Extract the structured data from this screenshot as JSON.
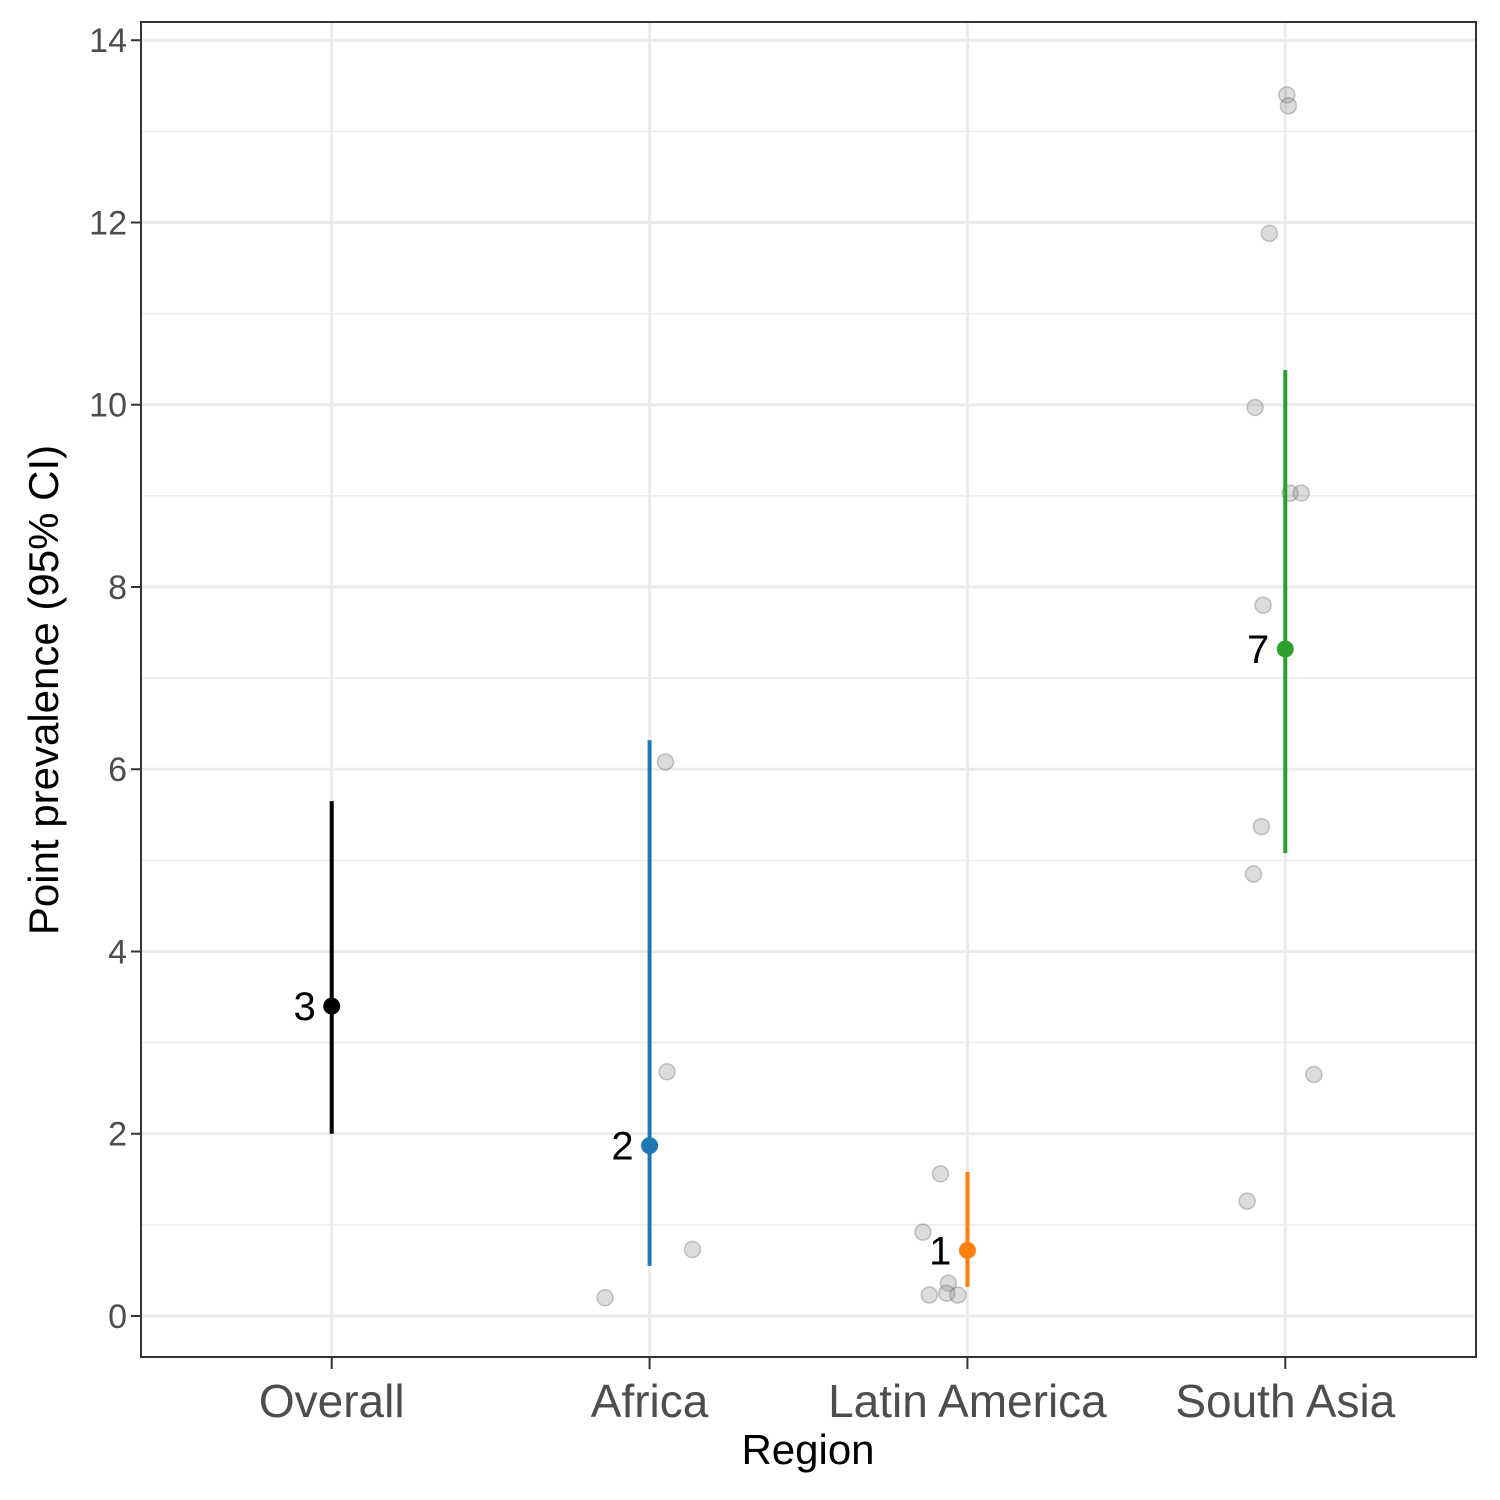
{
  "chart_data": {
    "type": "scatter",
    "title": "",
    "xlabel": "Region",
    "ylabel": "Point prevalence (95% CI)",
    "ylim": [
      -0.45,
      14.2
    ],
    "yticks": [
      0,
      2,
      4,
      6,
      8,
      10,
      12,
      14
    ],
    "ytick_labels": [
      "0",
      "2",
      "4",
      "6",
      "8",
      "10",
      "12",
      "14"
    ],
    "grid": true,
    "legend": "none",
    "categories": [
      "Overall",
      "Africa",
      "Latin America",
      "South Asia"
    ],
    "estimates": [
      {
        "category": "Overall",
        "label": "3",
        "value": 3.4,
        "lower": 2.0,
        "upper": 5.65,
        "color": "#000000"
      },
      {
        "category": "Africa",
        "label": "2",
        "value": 1.87,
        "lower": 0.55,
        "upper": 6.32,
        "color": "#1f77b4"
      },
      {
        "category": "Latin America",
        "label": "1",
        "value": 0.72,
        "lower": 0.32,
        "upper": 1.58,
        "color": "#ff7f0e"
      },
      {
        "category": "South Asia",
        "label": "7",
        "value": 7.32,
        "lower": 5.08,
        "upper": 10.38,
        "color": "#2ca02c"
      }
    ],
    "study_points": [
      {
        "category": "Africa",
        "offset": 0.05,
        "value": 6.08
      },
      {
        "category": "Africa",
        "offset": 0.055,
        "value": 2.68
      },
      {
        "category": "Africa",
        "offset": 0.135,
        "value": 0.73
      },
      {
        "category": "Africa",
        "offset": -0.14,
        "value": 0.2
      },
      {
        "category": "Latin America",
        "offset": -0.085,
        "value": 1.56
      },
      {
        "category": "Latin America",
        "offset": -0.14,
        "value": 0.92
      },
      {
        "category": "Latin America",
        "offset": -0.06,
        "value": 0.36
      },
      {
        "category": "Latin America",
        "offset": -0.065,
        "value": 0.25
      },
      {
        "category": "Latin America",
        "offset": -0.12,
        "value": 0.23
      },
      {
        "category": "Latin America",
        "offset": -0.03,
        "value": 0.23
      },
      {
        "category": "South Asia",
        "offset": 0.005,
        "value": 13.4
      },
      {
        "category": "South Asia",
        "offset": 0.01,
        "value": 13.28
      },
      {
        "category": "South Asia",
        "offset": -0.05,
        "value": 11.88
      },
      {
        "category": "South Asia",
        "offset": -0.095,
        "value": 9.97
      },
      {
        "category": "South Asia",
        "offset": 0.015,
        "value": 9.03
      },
      {
        "category": "South Asia",
        "offset": 0.05,
        "value": 9.03
      },
      {
        "category": "South Asia",
        "offset": -0.07,
        "value": 7.8
      },
      {
        "category": "South Asia",
        "offset": -0.075,
        "value": 5.37
      },
      {
        "category": "South Asia",
        "offset": -0.1,
        "value": 4.85
      },
      {
        "category": "South Asia",
        "offset": 0.09,
        "value": 2.65
      },
      {
        "category": "South Asia",
        "offset": -0.12,
        "value": 1.26
      }
    ]
  }
}
